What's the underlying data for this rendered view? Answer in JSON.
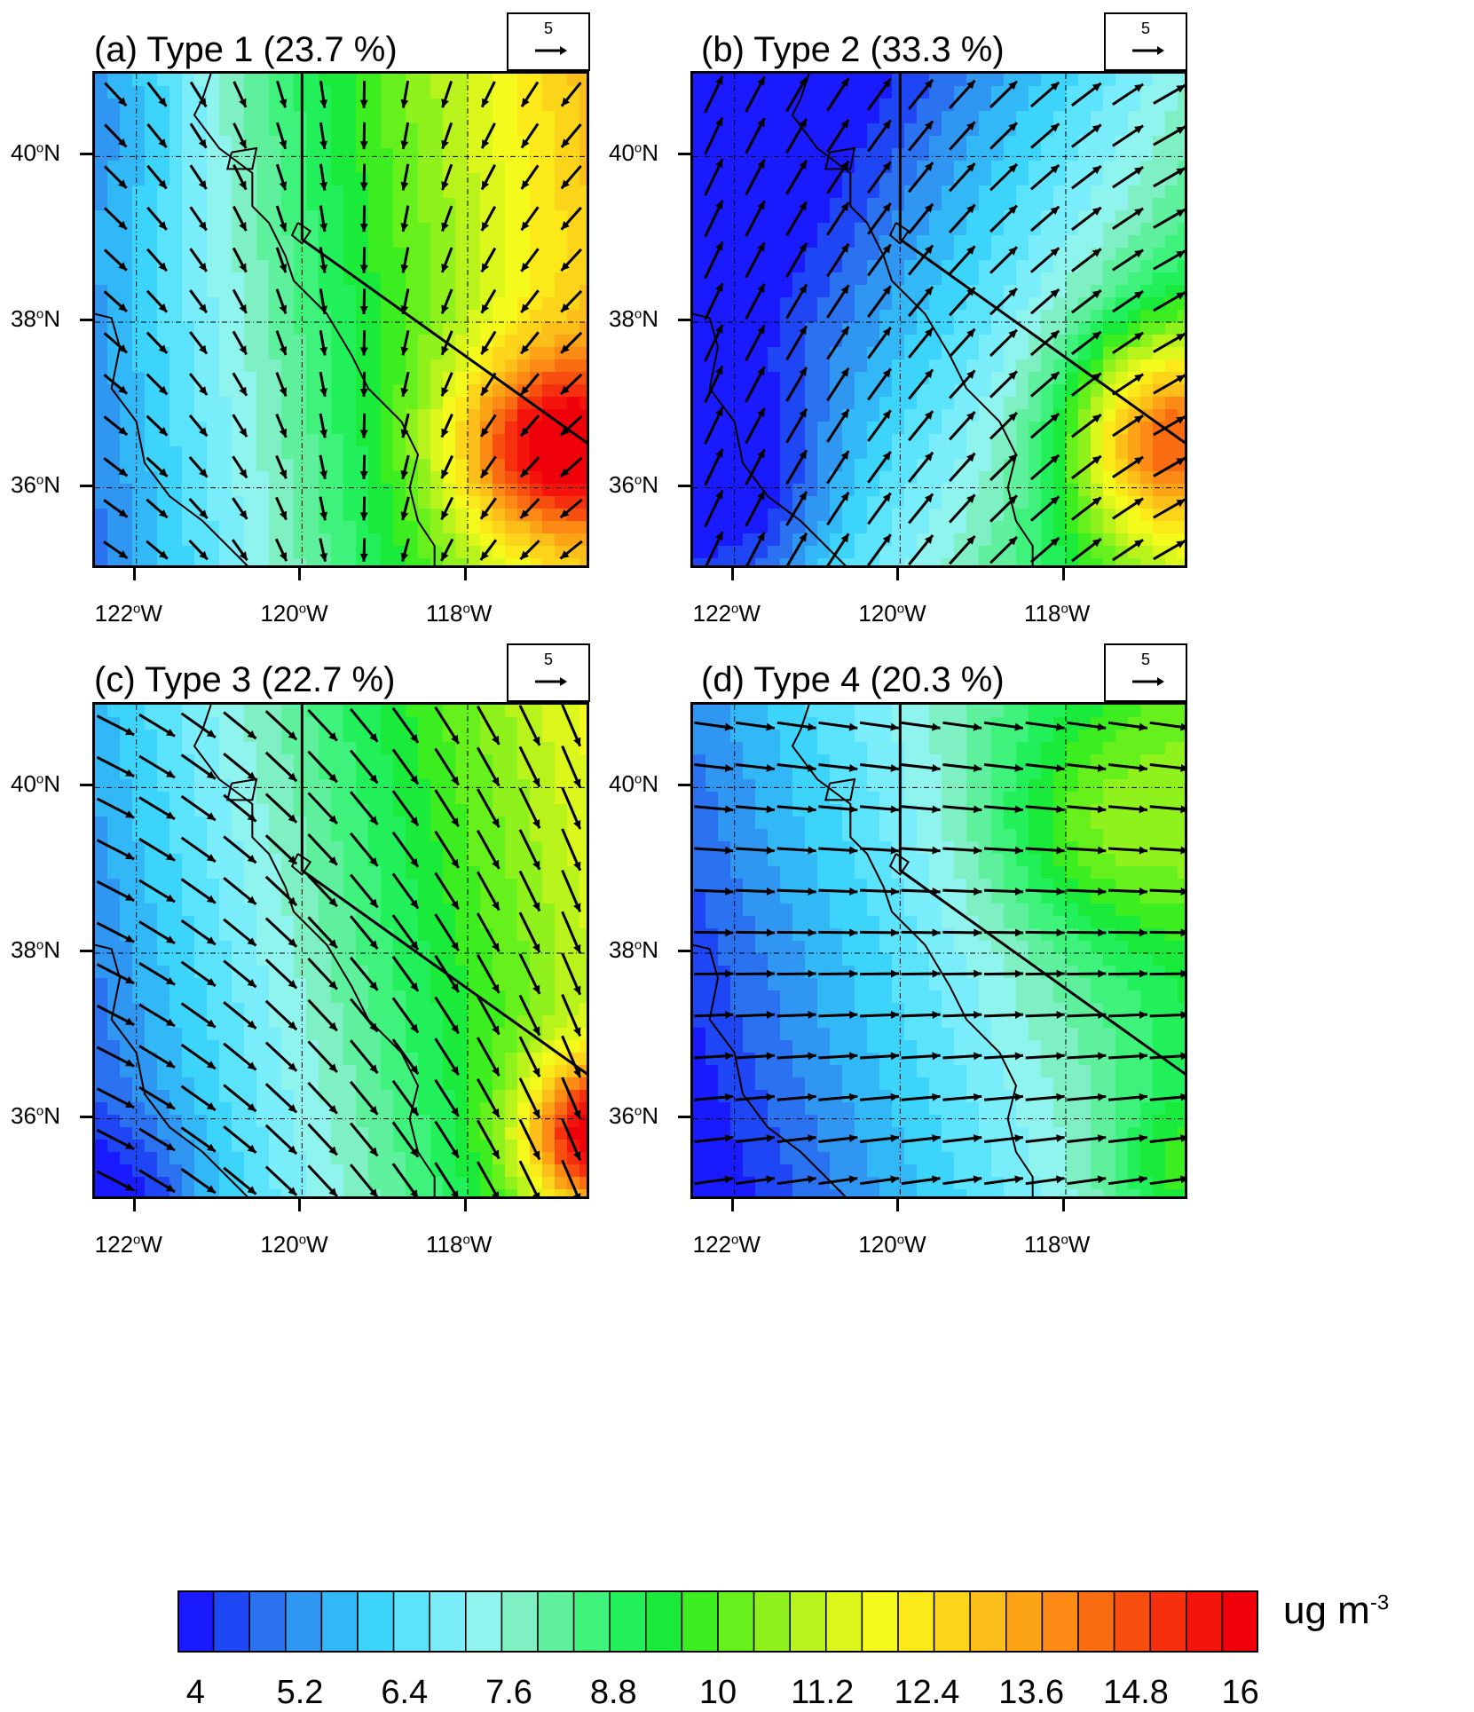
{
  "panels": [
    {
      "id": "a",
      "title": "(a) Type 1 (23.7 %)",
      "ref_label": "5",
      "field": "type1"
    },
    {
      "id": "b",
      "title": "(b) Type 2 (33.3 %)",
      "ref_label": "5",
      "field": "type2"
    },
    {
      "id": "c",
      "title": "(c) Type 3 (22.7 %)",
      "ref_label": "5",
      "field": "type3"
    },
    {
      "id": "d",
      "title": "(d) Type 4 (20.3 %)",
      "ref_label": "5",
      "field": "type4"
    }
  ],
  "lat_labels": [
    {
      "deg": "40",
      "hemi": "N",
      "value": 40
    },
    {
      "deg": "38",
      "hemi": "N",
      "value": 38
    },
    {
      "deg": "36",
      "hemi": "N",
      "value": 36
    }
  ],
  "lon_labels": [
    {
      "deg": "122",
      "hemi": "W",
      "value": -122
    },
    {
      "deg": "120",
      "hemi": "W",
      "value": -120
    },
    {
      "deg": "118",
      "hemi": "W",
      "value": -118
    }
  ],
  "map_extent": {
    "lon_min": -122.5,
    "lon_max": -116.5,
    "lat_min": 35,
    "lat_max": 41
  },
  "colorbar": {
    "min": 4,
    "max": 16,
    "step": 0.4,
    "tick_labels": [
      "4",
      "5.2",
      "6.4",
      "7.6",
      "8.8",
      "10",
      "11.2",
      "12.4",
      "13.6",
      "14.8",
      "16"
    ],
    "units_main": "ug m",
    "units_exp": "-3",
    "colors": [
      "#1a1aff",
      "#1f46f5",
      "#2a72f0",
      "#2f96f2",
      "#33b8f7",
      "#3cd4fa",
      "#5ae3fa",
      "#79eefa",
      "#8ff3ee",
      "#7ef0c4",
      "#5ef09c",
      "#3ef27c",
      "#22f05a",
      "#1aea3a",
      "#3cee20",
      "#66f01c",
      "#90f21c",
      "#b8f41c",
      "#dcf71c",
      "#f4fa1c",
      "#fce91a",
      "#fcd41a",
      "#fcbe18",
      "#fca416",
      "#fc8a14",
      "#fa6c12",
      "#f84e10",
      "#f6300e",
      "#f4140c",
      "#f0000a"
    ]
  }
}
